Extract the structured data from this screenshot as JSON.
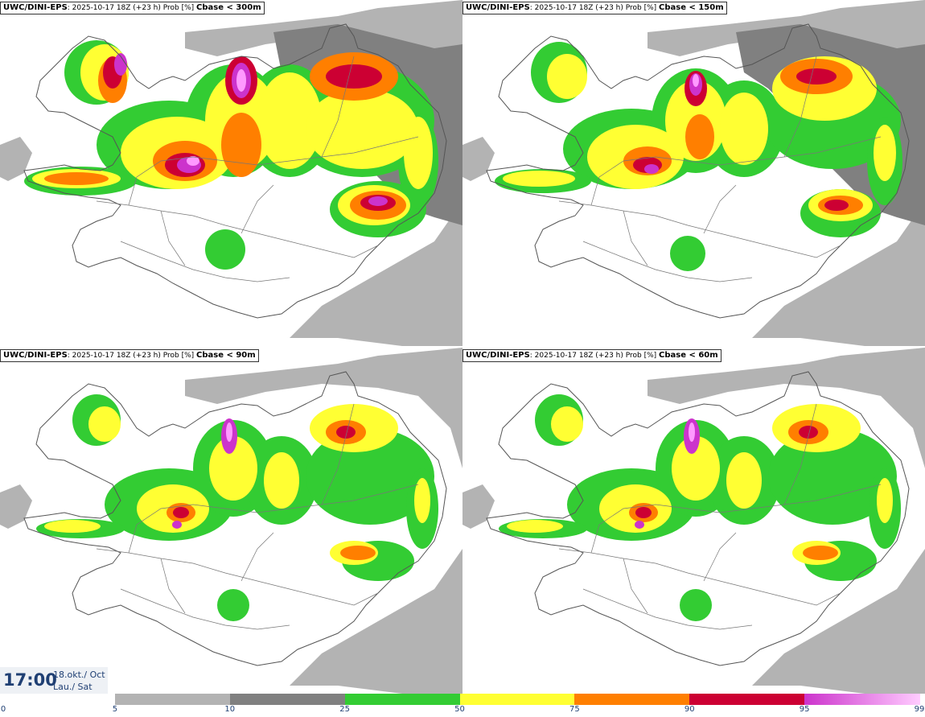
{
  "panels": [
    {
      "model": "UWC/DINI-EPS",
      "run": ": 2025-10-17 18Z (+23 h) Prob [%] ",
      "variable": "Cbase < 300m"
    },
    {
      "model": "UWC/DINI-EPS",
      "run": ": 2025-10-17 18Z (+23 h) Prob [%] ",
      "variable": "Cbase < 150m"
    },
    {
      "model": "UWC/DINI-EPS",
      "run": ": 2025-10-17 18Z (+23 h) Prob [%] ",
      "variable": "Cbase < 90m"
    },
    {
      "model": "UWC/DINI-EPS",
      "run": ": 2025-10-17 18Z (+23 h) Prob [%] ",
      "variable": "Cbase < 60m"
    }
  ],
  "valid_time": {
    "time": "17:00",
    "date_is": "18.okt./ Oct",
    "day": "Lau./ Sat"
  },
  "colorbar": {
    "ticks": [
      "0",
      "5",
      "10",
      "25",
      "50",
      "75",
      "90",
      "95",
      "99"
    ],
    "colors": [
      "#ffffff",
      "#b3b3b3",
      "#808080",
      "#33cc33",
      "#ffff33",
      "#ff7f00",
      "#cc0033",
      "#cc33cc",
      "#ffccff"
    ]
  },
  "palette": {
    "light_grey": "#b3b3b3",
    "dark_grey": "#808080",
    "green": "#33cc33",
    "yellow": "#ffff33",
    "orange": "#ff7f00",
    "red": "#cc0033",
    "magenta": "#cc33cc",
    "pink": "#ff99ff",
    "outline": "#555555"
  }
}
